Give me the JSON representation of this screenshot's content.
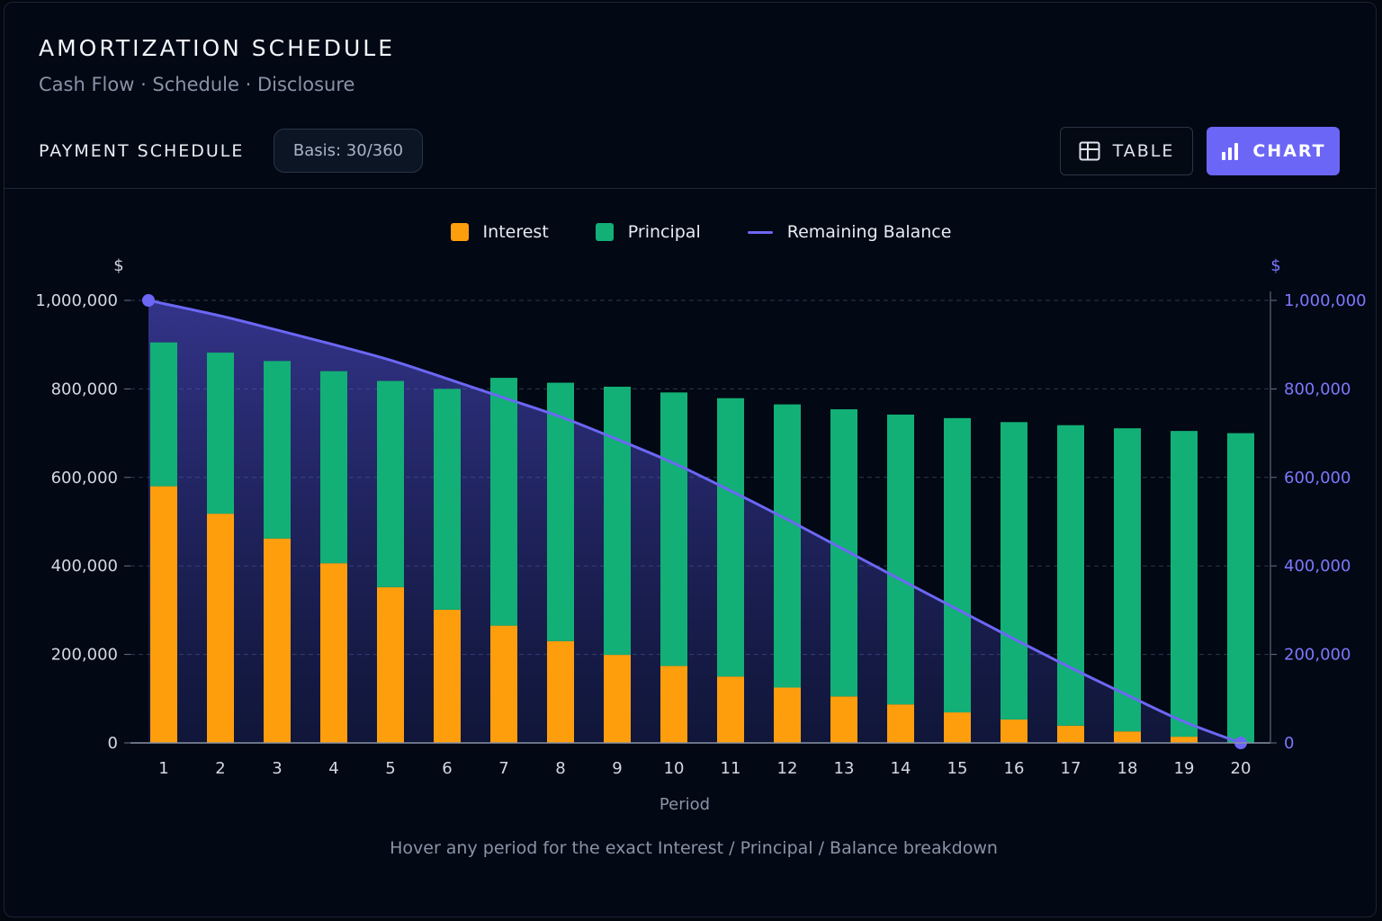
{
  "header": {
    "title": "AMORTIZATION SCHEDULE",
    "subtitle": "Cash Flow · Schedule · Disclosure"
  },
  "toolbar": {
    "section_label": "PAYMENT SCHEDULE",
    "basis_badge": "Basis: 30/360",
    "table_button": "TABLE",
    "chart_button": "CHART",
    "table_icon": "table-grid-icon",
    "chart_icon": "bar-chart-icon",
    "active_view": "chart"
  },
  "colors": {
    "interest": "#ff9e0d",
    "principal": "#12b076",
    "balance": "#6c67f5",
    "accent": "#6b66f6"
  },
  "chart_data": {
    "type": "bar",
    "stacked": true,
    "xlabel": "Period",
    "y_left_unit": "$",
    "y_right_unit": "$",
    "ylim": [
      0,
      1000000
    ],
    "y_ticks": [
      0,
      200000,
      400000,
      600000,
      800000,
      1000000
    ],
    "y_tick_labels": [
      "0",
      "200,000",
      "400,000",
      "600,000",
      "800,000",
      "1,000,000"
    ],
    "grid": true,
    "legend_position": "top-center",
    "categories": [
      "1",
      "2",
      "3",
      "4",
      "5",
      "6",
      "7",
      "8",
      "9",
      "10",
      "11",
      "12",
      "13",
      "14",
      "15",
      "16",
      "17",
      "18",
      "19",
      "20"
    ],
    "series": [
      {
        "name": "Interest",
        "kind": "bar",
        "axis": "left",
        "values": [
          580000,
          518000,
          462000,
          406000,
          352000,
          301000,
          265000,
          230000,
          199000,
          174000,
          150000,
          125000,
          105000,
          87000,
          69000,
          53000,
          39000,
          26000,
          14000,
          0
        ]
      },
      {
        "name": "Principal",
        "kind": "bar",
        "axis": "left",
        "values": [
          325000,
          364000,
          401000,
          434000,
          466000,
          499000,
          560000,
          584000,
          606000,
          618000,
          629000,
          640000,
          649000,
          655000,
          665000,
          672000,
          679000,
          685000,
          691000,
          700000
        ]
      },
      {
        "name": "Remaining Balance",
        "kind": "area-line",
        "axis": "right",
        "values": [
          1000000,
          965000,
          933000,
          900000,
          865000,
          823000,
          780000,
          737000,
          686000,
          632000,
          570000,
          505000,
          437000,
          369000,
          302000,
          235000,
          170000,
          108000,
          48000,
          0
        ]
      }
    ]
  },
  "footnote": "Hover any period for the exact Interest / Principal / Balance breakdown"
}
